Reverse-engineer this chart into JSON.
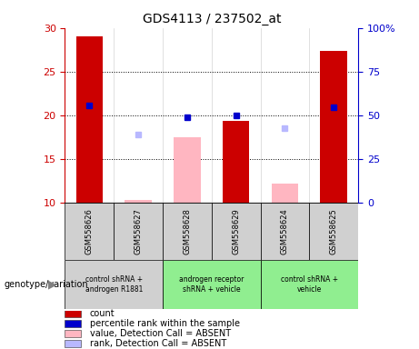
{
  "title": "GDS4113 / 237502_at",
  "samples": [
    "GSM558626",
    "GSM558627",
    "GSM558628",
    "GSM558629",
    "GSM558624",
    "GSM558625"
  ],
  "red_bars": [
    29.0,
    null,
    null,
    19.3,
    null,
    27.4
  ],
  "pink_bars": [
    null,
    10.3,
    17.5,
    null,
    12.2,
    null
  ],
  "blue_squares": [
    21.1,
    null,
    19.8,
    20.0,
    null,
    20.9
  ],
  "lavender_squares": [
    null,
    17.8,
    null,
    null,
    18.5,
    null
  ],
  "ylim_left": [
    10,
    30
  ],
  "yticks_left": [
    10,
    15,
    20,
    25,
    30
  ],
  "yticks_right_vals": [
    0,
    25,
    50,
    75,
    100
  ],
  "ytick_labels_right": [
    "0",
    "25",
    "50",
    "75",
    "100%"
  ],
  "left_axis_color": "#cc0000",
  "right_axis_color": "#0000cc",
  "bar_width": 0.55,
  "group_defs": [
    {
      "start": 0,
      "end": 1,
      "label": "control shRNA +\nandrogen R1881",
      "color": "#d0d0d0"
    },
    {
      "start": 2,
      "end": 3,
      "label": "androgen receptor\nshRNA + vehicle",
      "color": "#90ee90"
    },
    {
      "start": 4,
      "end": 5,
      "label": "control shRNA +\nvehicle",
      "color": "#90ee90"
    }
  ],
  "legend_items": [
    {
      "color": "#cc0000",
      "label": "count"
    },
    {
      "color": "#0000cc",
      "label": "percentile rank within the sample"
    },
    {
      "color": "#ffb6c1",
      "label": "value, Detection Call = ABSENT"
    },
    {
      "color": "#b8b8ff",
      "label": "rank, Detection Call = ABSENT"
    }
  ]
}
